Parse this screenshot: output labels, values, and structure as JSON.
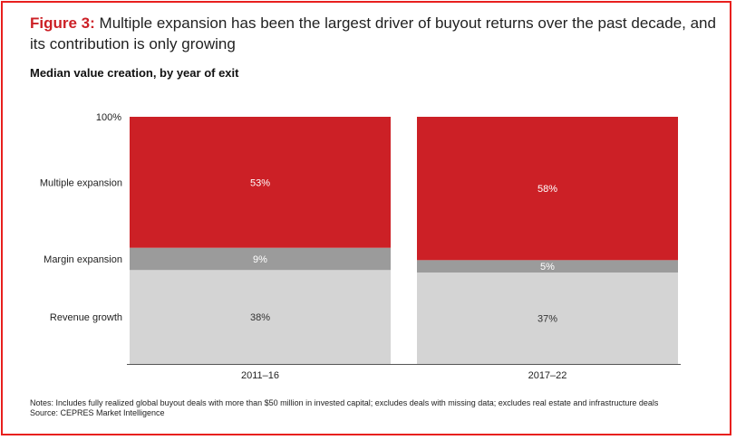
{
  "figure": {
    "label": "Figure 3:",
    "title": "Multiple expansion has been the largest driver of buyout returns over the past decade, and its contribution is only growing",
    "subtitle": "Median value creation, by year of exit"
  },
  "notes": {
    "notes_text": "Notes: Includes fully realized global buyout deals with more than $50 million in invested capital; excludes deals with missing data; excludes real estate and infrastructure deals",
    "source_text": "Source: CEPRES Market Intelligence"
  },
  "colors": {
    "Revenue growth": "#d4d4d4",
    "Margin expansion": "#9b9b9b",
    "Multiple expansion": "#cc2026",
    "label_light": "#ffffff",
    "label_dark": "#333333"
  },
  "chart_data": {
    "type": "bar",
    "stacked": true,
    "categories": [
      "2011–16",
      "2017–22"
    ],
    "series": [
      {
        "name": "Revenue growth",
        "values": [
          38,
          37
        ],
        "labels": [
          "38%",
          "37%"
        ]
      },
      {
        "name": "Margin expansion",
        "values": [
          9,
          5
        ],
        "labels": [
          "9%",
          "5%"
        ]
      },
      {
        "name": "Multiple expansion",
        "values": [
          53,
          58
        ],
        "labels": [
          "53%",
          "58%"
        ]
      }
    ],
    "y_top_label": "100%",
    "ylim": [
      0,
      100
    ],
    "grid": false,
    "legend": "left"
  }
}
